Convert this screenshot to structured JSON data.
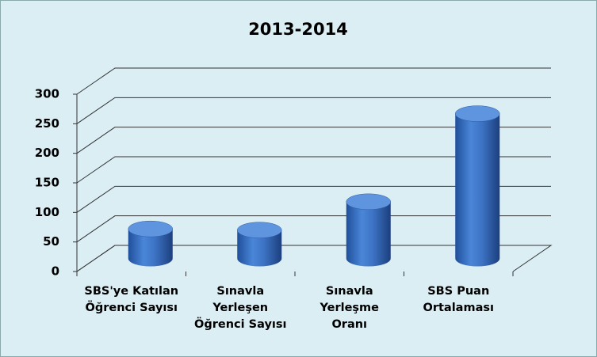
{
  "chart_data": {
    "type": "bar",
    "title": "2013-2014",
    "categories": [
      "SBS'ye Katılan\nÖğrenci Sayısı",
      "Sınavla\nYerleşen\nÖğrenci Sayısı",
      "Sınavla\nYerleşme\nOranı",
      "SBS Puan\nOrtalaması"
    ],
    "values": [
      50,
      48,
      96,
      245
    ],
    "color": "#3a6fc0",
    "ylim": [
      0,
      300
    ],
    "yticks": [
      0,
      50,
      100,
      150,
      200,
      250,
      300
    ],
    "grid": true
  }
}
